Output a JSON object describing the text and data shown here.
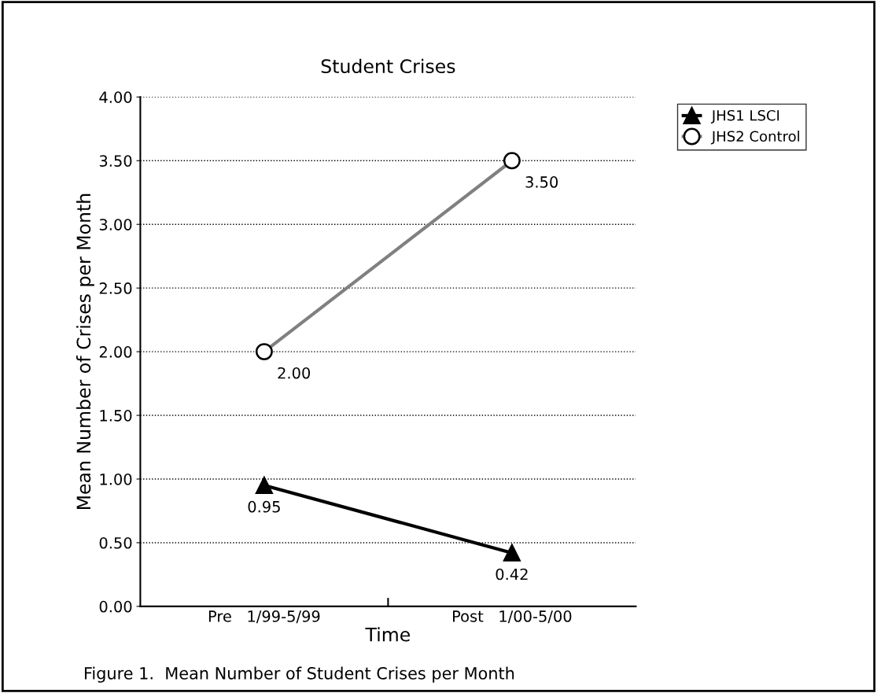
{
  "chart_data": {
    "type": "line",
    "title": "Student Crises",
    "xlabel": "Time",
    "ylabel": "Mean Number of Crises per Month",
    "categories": [
      "Pre   1/99-5/99",
      "Post   1/00-5/00"
    ],
    "series": [
      {
        "name": "JHS1 LSCI",
        "color": "#000000",
        "marker": "triangle",
        "values": [
          0.95,
          0.42
        ],
        "value_labels": [
          "0.95",
          "0.42"
        ]
      },
      {
        "name": "JHS2 Control",
        "color": "#808080",
        "marker": "circle",
        "values": [
          2.0,
          3.5
        ],
        "value_labels": [
          "2.00",
          "3.50"
        ]
      }
    ],
    "ylim": [
      0,
      4
    ],
    "yticks": [
      {
        "value": 0,
        "label": "0.00"
      },
      {
        "value": 0.5,
        "label": "0.50"
      },
      {
        "value": 1,
        "label": "1.00"
      },
      {
        "value": 1.5,
        "label": "1.50"
      },
      {
        "value": 2,
        "label": "2.00"
      },
      {
        "value": 2.5,
        "label": "2.50"
      },
      {
        "value": 3,
        "label": "3.00"
      },
      {
        "value": 3.5,
        "label": "3.50"
      },
      {
        "value": 4,
        "label": "4.00"
      }
    ],
    "grid": "y",
    "legend": "top right",
    "line_style": "solid",
    "annotations": [
      "Figure 1.  Mean Number of Student Crises per Month"
    ]
  }
}
